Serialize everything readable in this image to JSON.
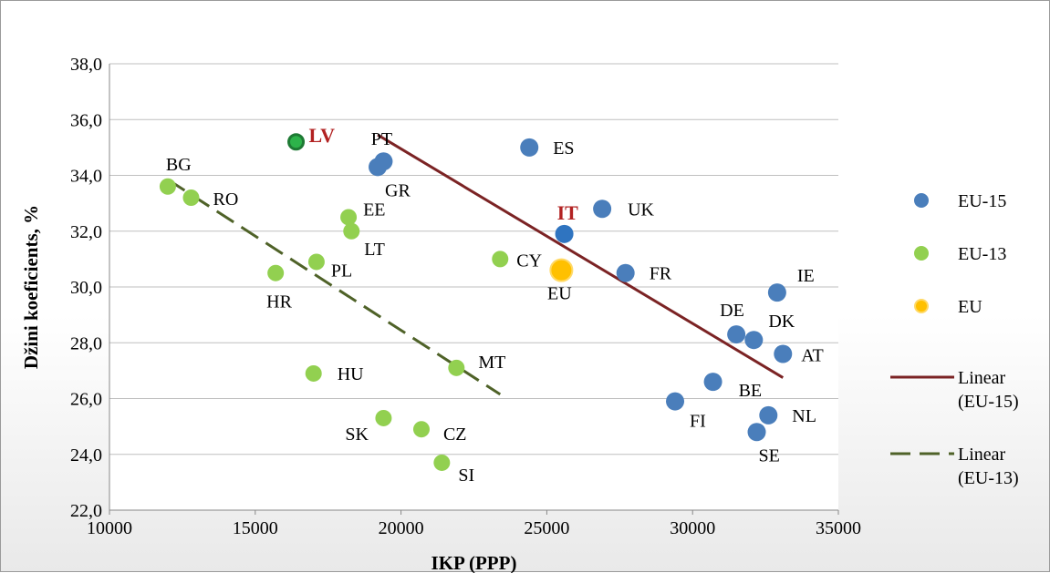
{
  "chart_data": {
    "type": "scatter",
    "xlabel": "IKP (PPP)",
    "ylabel": "Džini koeficients, %",
    "xlim": [
      10000,
      35000
    ],
    "ylim": [
      22,
      38
    ],
    "x_ticks": [
      "10000",
      "15000",
      "20000",
      "25000",
      "30000",
      "35000"
    ],
    "y_ticks": [
      "22,0",
      "24,0",
      "26,0",
      "28,0",
      "30,0",
      "32,0",
      "34,0",
      "36,0",
      "38,0"
    ],
    "grid": "horizontal",
    "legend_position": "right",
    "colors": {
      "eu15": "#4a7ebb",
      "eu13": "#92d050",
      "eu": "#ffc000",
      "eu_border": "#ffd966",
      "trend15": "#7b2324",
      "trend13": "#4f6228",
      "highlight": "#b22222"
    },
    "series": [
      {
        "name": "EU-15",
        "points": [
          {
            "label": "ES",
            "x": 24400,
            "y": 35.0
          },
          {
            "label": "PT",
            "x": 19400,
            "y": 34.5
          },
          {
            "label": "GR",
            "x": 19200,
            "y": 34.3
          },
          {
            "label": "UK",
            "x": 26900,
            "y": 32.8
          },
          {
            "label": "IT",
            "x": 25600,
            "y": 31.9,
            "highlight": true
          },
          {
            "label": "FR",
            "x": 27700,
            "y": 30.5
          },
          {
            "label": "IE",
            "x": 32900,
            "y": 29.8
          },
          {
            "label": "DE",
            "x": 31500,
            "y": 28.3
          },
          {
            "label": "DK",
            "x": 32100,
            "y": 28.1
          },
          {
            "label": "AT",
            "x": 33100,
            "y": 27.6
          },
          {
            "label": "BE",
            "x": 30700,
            "y": 26.6
          },
          {
            "label": "FI",
            "x": 29400,
            "y": 25.9
          },
          {
            "label": "NL",
            "x": 32600,
            "y": 25.4
          },
          {
            "label": "SE",
            "x": 32200,
            "y": 24.8
          }
        ]
      },
      {
        "name": "EU-13",
        "points": [
          {
            "label": "LV",
            "x": 16400,
            "y": 35.2,
            "highlight": true
          },
          {
            "label": "BG",
            "x": 12000,
            "y": 33.6
          },
          {
            "label": "RO",
            "x": 12800,
            "y": 33.2
          },
          {
            "label": "EE",
            "x": 18200,
            "y": 32.5
          },
          {
            "label": "LT",
            "x": 18300,
            "y": 32.0
          },
          {
            "label": "CY",
            "x": 23400,
            "y": 31.0
          },
          {
            "label": "PL",
            "x": 17100,
            "y": 30.9
          },
          {
            "label": "HR",
            "x": 15700,
            "y": 30.5
          },
          {
            "label": "MT",
            "x": 21900,
            "y": 27.1
          },
          {
            "label": "HU",
            "x": 17000,
            "y": 26.9
          },
          {
            "label": "SK",
            "x": 19400,
            "y": 25.3
          },
          {
            "label": "CZ",
            "x": 20700,
            "y": 24.9
          },
          {
            "label": "SI",
            "x": 21400,
            "y": 23.7
          }
        ]
      },
      {
        "name": "EU",
        "points": [
          {
            "label": "EU",
            "x": 25500,
            "y": 30.6
          }
        ]
      }
    ],
    "trendlines": [
      {
        "name": "Linear (EU-15)",
        "from": [
          19200,
          35.45
        ],
        "to": [
          33100,
          26.75
        ]
      },
      {
        "name": "Linear (EU-13)",
        "from": [
          12000,
          33.85
        ],
        "to": [
          23400,
          26.15
        ]
      }
    ]
  }
}
